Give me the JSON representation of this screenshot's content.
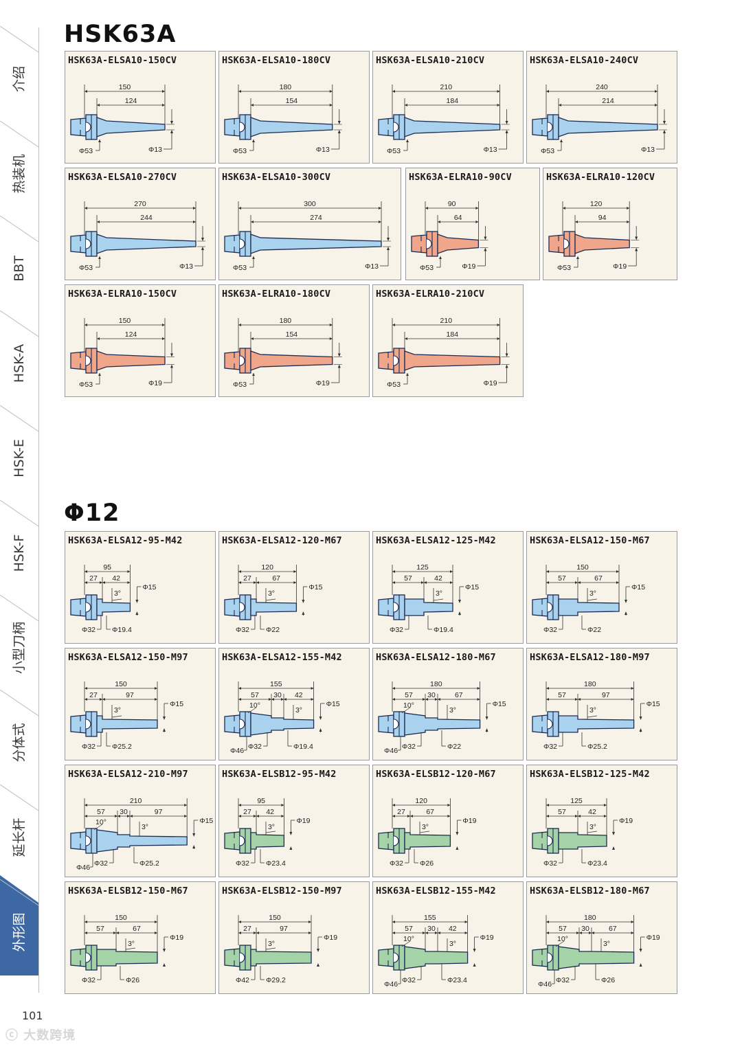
{
  "sidebar": {
    "items": [
      {
        "label": "介绍"
      },
      {
        "label": "热装机"
      },
      {
        "label": "BBT"
      },
      {
        "label": "HSK-A"
      },
      {
        "label": "HSK-E"
      },
      {
        "label": "HSK-F"
      },
      {
        "label": "小型刀柄"
      },
      {
        "label": "分体式"
      },
      {
        "label": "延长杆"
      },
      {
        "label": "外形图",
        "active": true
      }
    ],
    "active_color": "#3d68a4"
  },
  "sections": [
    {
      "title": "HSK63A",
      "cards": [
        {
          "name": "HSK63A-ELSA10-150CV",
          "type": "cv",
          "color": "#a9d2ee",
          "L": "150",
          "l": "124",
          "D1": "Φ53",
          "D2": "Φ13"
        },
        {
          "name": "HSK63A-ELSA10-180CV",
          "type": "cv",
          "color": "#a9d2ee",
          "L": "180",
          "l": "154",
          "D1": "Φ53",
          "D2": "Φ13"
        },
        {
          "name": "HSK63A-ELSA10-210CV",
          "type": "cv",
          "color": "#a9d2ee",
          "L": "210",
          "l": "184",
          "D1": "Φ53",
          "D2": "Φ13"
        },
        {
          "name": "HSK63A-ELSA10-240CV",
          "type": "cv",
          "color": "#a9d2ee",
          "L": "240",
          "l": "214",
          "D1": "Φ53",
          "D2": "Φ13"
        },
        {
          "name": "HSK63A-ELSA10-270CV",
          "type": "cv",
          "color": "#a9d2ee",
          "L": "270",
          "l": "244",
          "D1": "Φ53",
          "D2": "Φ13"
        },
        {
          "name": "HSK63A-ELSA10-300CV",
          "type": "cv",
          "color": "#a9d2ee",
          "L": "300",
          "l": "274",
          "D1": "Φ53",
          "D2": "Φ13"
        },
        {
          "name": "HSK63A-ELRA10-90CV",
          "type": "cv",
          "color": "#efa68a",
          "L": "90",
          "l": "64",
          "D1": "Φ53",
          "D2": "Φ19"
        },
        {
          "name": "HSK63A-ELRA10-120CV",
          "type": "cv",
          "color": "#efa68a",
          "L": "120",
          "l": "94",
          "D1": "Φ53",
          "D2": "Φ19"
        },
        {
          "name": "HSK63A-ELRA10-150CV",
          "type": "cv",
          "color": "#efa68a",
          "L": "150",
          "l": "124",
          "D1": "Φ53",
          "D2": "Φ19"
        },
        {
          "name": "HSK63A-ELRA10-180CV",
          "type": "cv",
          "color": "#efa68a",
          "L": "180",
          "l": "154",
          "D1": "Φ53",
          "D2": "Φ19"
        },
        {
          "name": "HSK63A-ELRA10-210CV",
          "type": "cv",
          "color": "#efa68a",
          "L": "210",
          "l": "184",
          "D1": "Φ53",
          "D2": "Φ19"
        }
      ]
    },
    {
      "title": "Φ12",
      "cards": [
        {
          "name": "HSK63A-ELSA12-95-M42",
          "type": "m",
          "color": "#a9d2ee",
          "L": "95",
          "segs": [
            "27",
            "42"
          ],
          "angles": [
            "3°"
          ],
          "Dtip": "Φ15",
          "Dbase": "Φ32",
          "Dmid": "Φ19.4"
        },
        {
          "name": "HSK63A-ELSA12-120-M67",
          "type": "m",
          "color": "#a9d2ee",
          "L": "120",
          "segs": [
            "27",
            "67"
          ],
          "angles": [
            "3°"
          ],
          "Dtip": "Φ15",
          "Dbase": "Φ32",
          "Dmid": "Φ22"
        },
        {
          "name": "HSK63A-ELSA12-125-M42",
          "type": "m",
          "color": "#a9d2ee",
          "L": "125",
          "segs": [
            "57",
            "42"
          ],
          "angles": [
            "3°"
          ],
          "Dtip": "Φ15",
          "Dbase": "Φ32",
          "Dmid": "Φ19.4"
        },
        {
          "name": "HSK63A-ELSA12-150-M67",
          "type": "m",
          "color": "#a9d2ee",
          "L": "150",
          "segs": [
            "57",
            "67"
          ],
          "angles": [
            "3°"
          ],
          "Dtip": "Φ15",
          "Dbase": "Φ32",
          "Dmid": "Φ22"
        },
        {
          "name": "HSK63A-ELSA12-150-M97",
          "type": "m",
          "color": "#a9d2ee",
          "L": "150",
          "segs": [
            "27",
            "97"
          ],
          "angles": [
            "3°"
          ],
          "Dtip": "Φ15",
          "Dbase": "Φ32",
          "Dmid": "Φ25.2"
        },
        {
          "name": "HSK63A-ELSA12-155-M42",
          "type": "m",
          "color": "#a9d2ee",
          "L": "155",
          "segs": [
            "57",
            "30",
            "42"
          ],
          "angles": [
            "10°",
            "3°"
          ],
          "Dtip": "Φ15",
          "Dbig": "Φ46",
          "Dbase": "Φ32",
          "Dmid": "Φ19.4"
        },
        {
          "name": "HSK63A-ELSA12-180-M67",
          "type": "m",
          "color": "#a9d2ee",
          "L": "180",
          "segs": [
            "57",
            "30",
            "67"
          ],
          "angles": [
            "10°",
            "3°"
          ],
          "Dtip": "Φ15",
          "Dbig": "Φ46",
          "Dbase": "Φ32",
          "Dmid": "Φ22"
        },
        {
          "name": "HSK63A-ELSA12-180-M97",
          "type": "m",
          "color": "#a9d2ee",
          "L": "180",
          "segs": [
            "57",
            "97"
          ],
          "angles": [
            "3°"
          ],
          "Dtip": "Φ15",
          "Dbase": "Φ32",
          "Dmid": "Φ25.2"
        },
        {
          "name": "HSK63A-ELSA12-210-M97",
          "type": "m",
          "color": "#a9d2ee",
          "L": "210",
          "segs": [
            "57",
            "30",
            "97"
          ],
          "angles": [
            "10°",
            "3°"
          ],
          "Dtip": "Φ15",
          "Dbig": "Φ46",
          "Dbase": "Φ32",
          "Dmid": "Φ25.2"
        },
        {
          "name": "HSK63A-ELSB12-95-M42",
          "type": "m",
          "color": "#a5d3a8",
          "L": "95",
          "segs": [
            "27",
            "42"
          ],
          "angles": [
            "3°"
          ],
          "Dtip": "Φ19",
          "Dbase": "Φ32",
          "Dmid": "Φ23.4"
        },
        {
          "name": "HSK63A-ELSB12-120-M67",
          "type": "m",
          "color": "#a5d3a8",
          "L": "120",
          "segs": [
            "27",
            "67"
          ],
          "angles": [
            "3°"
          ],
          "Dtip": "Φ19",
          "Dbase": "Φ32",
          "Dmid": "Φ26"
        },
        {
          "name": "HSK63A-ELSB12-125-M42",
          "type": "m",
          "color": "#a5d3a8",
          "L": "125",
          "segs": [
            "57",
            "42"
          ],
          "angles": [
            "3°"
          ],
          "Dtip": "Φ19",
          "Dbase": "Φ32",
          "Dmid": "Φ23.4"
        },
        {
          "name": "HSK63A-ELSB12-150-M67",
          "type": "m",
          "color": "#a5d3a8",
          "L": "150",
          "segs": [
            "57",
            "67"
          ],
          "angles": [
            "3°"
          ],
          "Dtip": "Φ19",
          "Dbase": "Φ32",
          "Dmid": "Φ26"
        },
        {
          "name": "HSK63A-ELSB12-150-M97",
          "type": "m",
          "color": "#a5d3a8",
          "L": "150",
          "segs": [
            "27",
            "97"
          ],
          "angles": [
            "3°"
          ],
          "Dtip": "Φ19",
          "Dbase": "Φ42",
          "Dmid": "Φ29.2"
        },
        {
          "name": "HSK63A-ELSB12-155-M42",
          "type": "m",
          "color": "#a5d3a8",
          "L": "155",
          "segs": [
            "57",
            "30",
            "42"
          ],
          "angles": [
            "10°",
            "3°"
          ],
          "Dtip": "Φ19",
          "Dbig": "Φ46",
          "Dbase": "Φ32",
          "Dmid": "Φ23.4"
        },
        {
          "name": "HSK63A-ELSB12-180-M67",
          "type": "m",
          "color": "#a5d3a8",
          "L": "180",
          "segs": [
            "57",
            "30",
            "67"
          ],
          "angles": [
            "10°",
            "3°"
          ],
          "Dtip": "Φ19",
          "Dbig": "Φ46",
          "Dbase": "Φ32",
          "Dmid": "Φ26"
        }
      ]
    }
  ],
  "footer": {
    "page_number": "101",
    "watermark": "大数跨境"
  }
}
